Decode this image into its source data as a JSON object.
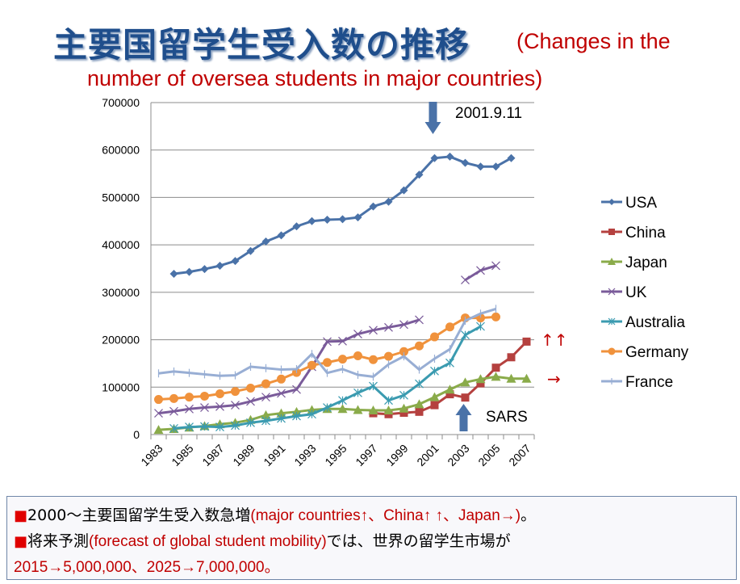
{
  "title": {
    "japanese": "主要国留学生受入数の推移",
    "english_part1": "(Changes in the",
    "english_part2": "number of oversea students in major countries)"
  },
  "chart_data": {
    "type": "line",
    "title": "主要国留学生受入数の推移 (Changes in the number of oversea students in major countries)",
    "xlabel": "",
    "ylabel": "",
    "ylim": [
      0,
      700000
    ],
    "yticks": [
      "0",
      "100000",
      "200000",
      "300000",
      "400000",
      "500000",
      "600000",
      "700000"
    ],
    "x": [
      1983,
      1984,
      1985,
      1986,
      1987,
      1988,
      1989,
      1990,
      1991,
      1992,
      1993,
      1994,
      1995,
      1996,
      1997,
      1998,
      1999,
      2000,
      2001,
      2002,
      2003,
      2004,
      2005,
      2006,
      2007
    ],
    "xticklabels": [
      "1983",
      "1985",
      "1987",
      "1989",
      "1991",
      "1993",
      "1995",
      "1997",
      "1999",
      "2001",
      "2003",
      "2005",
      "2007"
    ],
    "grid": true,
    "legend_position": "right",
    "series": [
      {
        "name": "USA",
        "color": "#4a72a8",
        "marker": "diamond",
        "values": [
          null,
          339000,
          343000,
          349000,
          356000,
          366000,
          387000,
          407000,
          420000,
          439000,
          450000,
          453000,
          454000,
          458000,
          481000,
          491000,
          515000,
          548000,
          583000,
          586000,
          573000,
          565000,
          565000,
          583000,
          null
        ]
      },
      {
        "name": "China",
        "color": "#b5413f",
        "marker": "square",
        "values": [
          null,
          null,
          null,
          null,
          null,
          null,
          null,
          null,
          null,
          null,
          null,
          null,
          null,
          null,
          45000,
          43000,
          46000,
          48000,
          62000,
          85000,
          78000,
          108000,
          141000,
          163000,
          196000
        ]
      },
      {
        "name": "Japan",
        "color": "#8aab4a",
        "marker": "triangle",
        "values": [
          10000,
          12000,
          15000,
          18000,
          22000,
          25000,
          31000,
          41000,
          45000,
          48000,
          52000,
          54000,
          54000,
          52000,
          51000,
          51000,
          55000,
          64000,
          79000,
          95000,
          110000,
          117000,
          122000,
          118000,
          118000
        ]
      },
      {
        "name": "UK",
        "color": "#7a5b9a",
        "marker": "x",
        "values": [
          45000,
          49000,
          54000,
          57000,
          59000,
          62000,
          70000,
          79000,
          87000,
          95000,
          143000,
          196000,
          197000,
          212000,
          220000,
          226000,
          232000,
          242000,
          null,
          null,
          326000,
          346000,
          356000,
          null,
          null
        ]
      },
      {
        "name": "Australia",
        "color": "#3b9bb0",
        "marker": "star",
        "values": [
          null,
          13000,
          16000,
          17000,
          16000,
          19000,
          25000,
          29000,
          34000,
          39000,
          43000,
          57000,
          72000,
          88000,
          102000,
          72000,
          83000,
          107000,
          134000,
          151000,
          210000,
          228000,
          null,
          null,
          null
        ]
      },
      {
        "name": "Germany",
        "color": "#f0923c",
        "marker": "circle",
        "values": [
          74000,
          76000,
          79000,
          81000,
          86000,
          91000,
          98000,
          107000,
          117000,
          131000,
          146000,
          152000,
          159000,
          166000,
          158000,
          165000,
          175000,
          187000,
          206000,
          227000,
          246000,
          246000,
          248000,
          null,
          null
        ]
      },
      {
        "name": "France",
        "color": "#98aed4",
        "marker": "plus",
        "values": [
          129000,
          133000,
          130000,
          127000,
          124000,
          125000,
          143000,
          140000,
          137000,
          138000,
          170000,
          130000,
          138000,
          126000,
          122000,
          148000,
          165000,
          137000,
          160000,
          180000,
          240000,
          255000,
          265000,
          null,
          null
        ]
      }
    ],
    "annotations": [
      {
        "text": "2001.9.11",
        "arrow": "down",
        "x": 2001
      },
      {
        "text": "SARS",
        "arrow": "up",
        "x": 2003
      },
      {
        "text": "↑↑",
        "color": "#c00000",
        "near": "China"
      },
      {
        "text": "→",
        "color": "#c00000",
        "near": "Japan"
      }
    ]
  },
  "notes": {
    "line1_bullet": "■",
    "line1_jp": "2000～主要国留学生受入数急増",
    "line1_en": "(major countries↑、China↑ ↑、Japan→)",
    "line1_end": "。",
    "line2_bullet": "■",
    "line2_jp": "将来予測",
    "line2_en": "(forecast of global  student  mobility)",
    "line2_jp2": "では、世界の留学生市場が",
    "line3": "2015→5,000,000、2025→7,000,000。"
  }
}
